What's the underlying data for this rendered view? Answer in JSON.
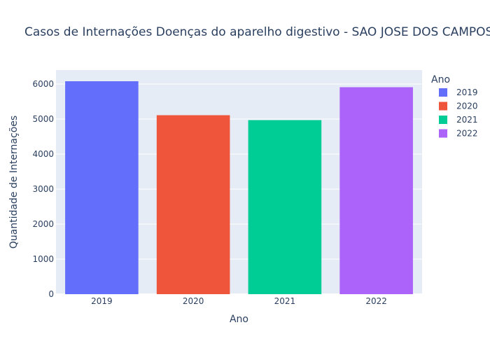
{
  "chart_data": {
    "type": "bar",
    "title": "Casos de Internações Doenças do aparelho digestivo - SAO JOSE DOS CAMPOS",
    "xlabel": "Ano",
    "ylabel": "Quantidade de Internações",
    "categories": [
      "2019",
      "2020",
      "2021",
      "2022"
    ],
    "values": [
      6080,
      5110,
      4970,
      5910
    ],
    "ylim": [
      0,
      6400
    ],
    "yticks": [
      0,
      1000,
      2000,
      3000,
      4000,
      5000,
      6000
    ],
    "grid": true,
    "legend": {
      "title": "Ano",
      "position": "top-right",
      "entries": [
        "2019",
        "2020",
        "2021",
        "2022"
      ]
    },
    "colors": [
      "#636efa",
      "#ef553b",
      "#00cc96",
      "#ab63fa"
    ],
    "plot_background": "#e5ecf6"
  }
}
